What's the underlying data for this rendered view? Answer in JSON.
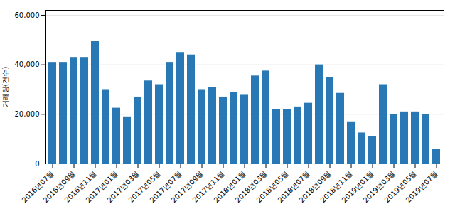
{
  "chart_data": {
    "type": "bar",
    "ylabel": "거래량(건수)",
    "categories": [
      "2016년07월",
      null,
      "2016년09월",
      null,
      "2016년11월",
      null,
      "2017년01월",
      null,
      "2017년03월",
      null,
      "2017년05월",
      null,
      "2017년07월",
      null,
      "2017년09월",
      null,
      "2017년11월",
      null,
      "2018년01월",
      null,
      "2018년03월",
      null,
      "2018년05월",
      null,
      "2018년07월",
      null,
      "2018년09월",
      null,
      "2018년11월",
      null,
      "2019년01월",
      null,
      "2019년03월",
      null,
      "2019년05월",
      null,
      "2019년07월"
    ],
    "values": [
      41000,
      41000,
      43000,
      43000,
      49500,
      30000,
      22500,
      19000,
      27000,
      33500,
      32000,
      41000,
      45000,
      44000,
      30000,
      31000,
      27000,
      29000,
      28000,
      35500,
      37500,
      22000,
      22000,
      23000,
      24500,
      40000,
      35000,
      28500,
      17000,
      12500,
      11000,
      32000,
      20000,
      21000,
      21000,
      20000,
      6000
    ],
    "color": "#2878b5",
    "ylim": [
      0,
      62000
    ],
    "yticks": [
      0,
      {
        "value": 20000,
        "label": "20,000"
      },
      {
        "value": 40000,
        "label": "40,000"
      },
      {
        "value": 60000,
        "label": "60,000"
      }
    ],
    "grid": true
  }
}
